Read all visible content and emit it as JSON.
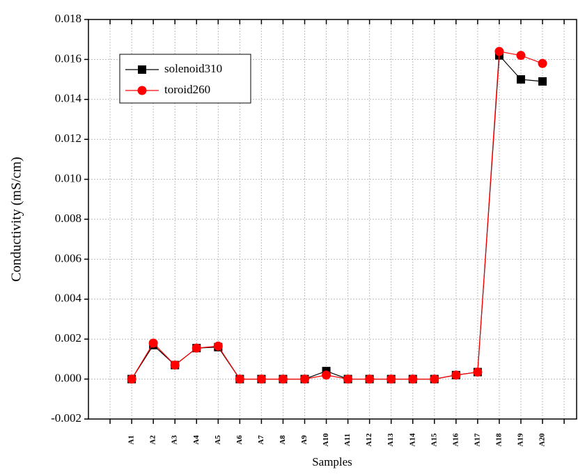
{
  "chart_data": {
    "type": "line",
    "x_label": "Samples",
    "y_label": "Conductivity (mS/cm)",
    "categories": [
      null,
      null,
      "A1",
      "A2",
      "A3",
      "A4",
      "A5",
      "A6",
      "A7",
      "A8",
      "A9",
      "A10",
      "A11",
      "A12",
      "A13",
      "A14",
      "A15",
      "A16",
      "A17",
      "A18",
      "A19",
      "A20",
      null
    ],
    "series": [
      {
        "name": "solenoid310",
        "color": "#000000",
        "marker": "square",
        "values": [
          null,
          null,
          0,
          0.0017,
          0.0007,
          0.00155,
          0.0016,
          0,
          0,
          0,
          0,
          0.0004,
          0,
          0,
          0,
          0,
          0,
          0.0002,
          0.00035,
          0.0162,
          0.015,
          0.0149,
          null
        ]
      },
      {
        "name": "toroid260",
        "color": "#ff0000",
        "marker": "circle",
        "values": [
          null,
          null,
          0,
          0.0018,
          0.0007,
          0.00155,
          0.00165,
          0,
          0,
          0,
          0,
          0.0002,
          0,
          0,
          0,
          0,
          0,
          0.0002,
          0.00035,
          0.0164,
          0.0162,
          0.0158,
          null
        ]
      }
    ],
    "ylim": [
      -0.002,
      0.018
    ],
    "yticks": [
      {
        "value": -0.002,
        "label": "-0.002"
      },
      {
        "value": 0,
        "label": "0.000"
      },
      {
        "value": 0.002,
        "label": "0.002"
      },
      {
        "value": 0.004,
        "label": "0.004"
      },
      {
        "value": 0.006,
        "label": "0.006"
      },
      {
        "value": 0.008,
        "label": "0.008"
      },
      {
        "value": 0.01,
        "label": "0.010"
      },
      {
        "value": 0.012,
        "label": "0.012"
      },
      {
        "value": 0.014,
        "label": "0.014"
      },
      {
        "value": 0.016,
        "label": "0.016"
      },
      {
        "value": 0.018,
        "label": "0.018"
      }
    ],
    "grid": true,
    "legend": "upper-left"
  }
}
